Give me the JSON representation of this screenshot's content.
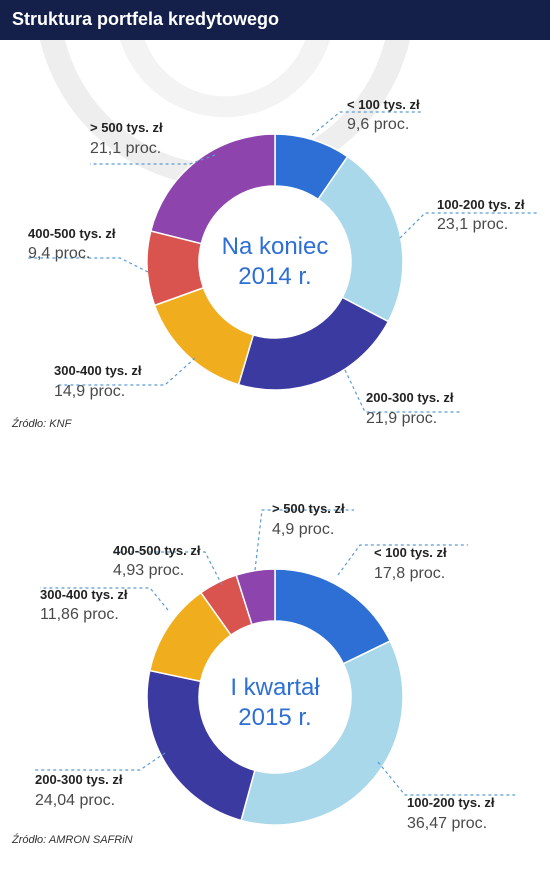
{
  "title": "Struktura portfela kredytowego",
  "colors": {
    "header_bg": "#14204a",
    "center_text": "#2e6fd6",
    "leader": "#5a9bd5"
  },
  "chart_data": [
    {
      "type": "pie",
      "center_label": [
        "Na koniec",
        "2014 r."
      ],
      "source": "Źródło: KNF",
      "slices": [
        {
          "label": "< 100 tys. zł",
          "value": 9.6,
          "value_text": "9,6 proc.",
          "color": "#2e6fd6"
        },
        {
          "label": "100-200 tys. zł",
          "value": 23.1,
          "value_text": "23,1 proc.",
          "color": "#a8d8ea"
        },
        {
          "label": "200-300 tys. zł",
          "value": 21.9,
          "value_text": "21,9 proc.",
          "color": "#3b3aa0"
        },
        {
          "label": "300-400 tys. zł",
          "value": 14.9,
          "value_text": "14,9 proc.",
          "color": "#f0ae1e"
        },
        {
          "label": "400-500 tys. zł",
          "value": 9.4,
          "value_text": "9,4 proc.",
          "color": "#d9534f"
        },
        {
          "label": "> 500 tys. zł",
          "value": 21.1,
          "value_text": "21,1 proc.",
          "color": "#8e44ad"
        }
      ]
    },
    {
      "type": "pie",
      "center_label": [
        "I kwartał",
        "2015 r."
      ],
      "source": "Źródło: AMRON SAFRiN",
      "slices": [
        {
          "label": "< 100 tys. zł",
          "value": 17.8,
          "value_text": "17,8 proc.",
          "color": "#2e6fd6"
        },
        {
          "label": "100-200 tys. zł",
          "value": 36.47,
          "value_text": "36,47 proc.",
          "color": "#a8d8ea"
        },
        {
          "label": "200-300 tys. zł",
          "value": 24.04,
          "value_text": "24,04 proc.",
          "color": "#3b3aa0"
        },
        {
          "label": "300-400 tys. zł",
          "value": 11.86,
          "value_text": "11,86 proc.",
          "color": "#f0ae1e"
        },
        {
          "label": "400-500 tys. zł",
          "value": 4.93,
          "value_text": "4,93 proc.",
          "color": "#d9534f"
        },
        {
          "label": "> 500 tys. zł",
          "value": 4.9,
          "value_text": "4,9 proc.",
          "color": "#8e44ad"
        }
      ]
    }
  ]
}
